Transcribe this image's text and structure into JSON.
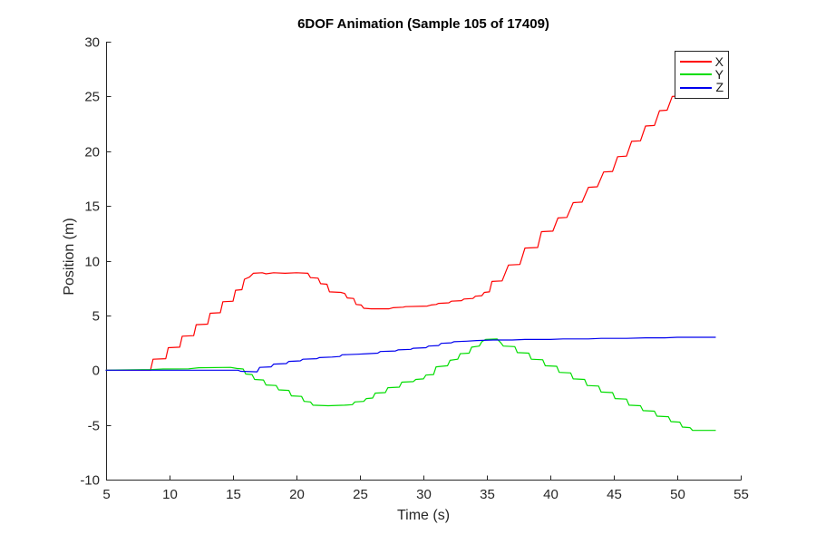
{
  "chart_data": {
    "type": "line",
    "title": "6DOF Animation (Sample 105 of 17409)",
    "xlabel": "Time (s)",
    "ylabel": "Position (m)",
    "xlim": [
      5,
      55
    ],
    "ylim": [
      -10,
      30
    ],
    "xticks": [
      5,
      10,
      15,
      20,
      25,
      30,
      35,
      40,
      45,
      50,
      55
    ],
    "yticks": [
      -10,
      -5,
      0,
      5,
      10,
      15,
      20,
      25,
      30
    ],
    "grid": false,
    "axis_color": "#262626",
    "background": "#ffffff",
    "legend": {
      "position": "top-right",
      "entries": [
        "X",
        "Y",
        "Z"
      ],
      "border_color": "#262626"
    },
    "series": [
      {
        "name": "X",
        "color": "#ff0000",
        "points": [
          [
            5,
            0
          ],
          [
            8.5,
            0
          ],
          [
            8.7,
            1.0
          ],
          [
            9.7,
            1.05
          ],
          [
            9.9,
            2.05
          ],
          [
            10.8,
            2.1
          ],
          [
            11.0,
            3.1
          ],
          [
            11.9,
            3.15
          ],
          [
            12.1,
            4.15
          ],
          [
            13.0,
            4.2
          ],
          [
            13.2,
            5.2
          ],
          [
            14.0,
            5.25
          ],
          [
            14.2,
            6.25
          ],
          [
            15.0,
            6.3
          ],
          [
            15.2,
            7.3
          ],
          [
            15.7,
            7.35
          ],
          [
            15.9,
            8.3
          ],
          [
            16.3,
            8.5
          ],
          [
            16.6,
            8.85
          ],
          [
            17.3,
            8.9
          ],
          [
            17.6,
            8.8
          ],
          [
            18.2,
            8.9
          ],
          [
            19.1,
            8.85
          ],
          [
            20.0,
            8.9
          ],
          [
            20.9,
            8.85
          ],
          [
            21.1,
            8.45
          ],
          [
            21.7,
            8.4
          ],
          [
            21.9,
            7.9
          ],
          [
            22.4,
            7.85
          ],
          [
            22.6,
            7.15
          ],
          [
            23.5,
            7.1
          ],
          [
            23.8,
            7.0
          ],
          [
            24.0,
            6.6
          ],
          [
            24.5,
            6.55
          ],
          [
            24.7,
            6.0
          ],
          [
            25.1,
            5.95
          ],
          [
            25.3,
            5.65
          ],
          [
            25.9,
            5.6
          ],
          [
            27.3,
            5.6
          ],
          [
            27.6,
            5.7
          ],
          [
            28.4,
            5.75
          ],
          [
            28.6,
            5.8
          ],
          [
            30.3,
            5.85
          ],
          [
            30.6,
            5.95
          ],
          [
            31.0,
            6.0
          ],
          [
            31.2,
            6.1
          ],
          [
            32.0,
            6.15
          ],
          [
            32.2,
            6.3
          ],
          [
            33.0,
            6.35
          ],
          [
            33.2,
            6.5
          ],
          [
            33.9,
            6.55
          ],
          [
            34.1,
            6.75
          ],
          [
            34.6,
            6.8
          ],
          [
            34.8,
            7.1
          ],
          [
            35.2,
            7.15
          ],
          [
            35.4,
            8.1
          ],
          [
            36.2,
            8.15
          ],
          [
            36.7,
            9.6
          ],
          [
            37.6,
            9.65
          ],
          [
            38.0,
            11.15
          ],
          [
            39.0,
            11.2
          ],
          [
            39.3,
            12.65
          ],
          [
            40.2,
            12.7
          ],
          [
            40.6,
            13.9
          ],
          [
            41.3,
            13.95
          ],
          [
            41.8,
            15.3
          ],
          [
            42.5,
            15.35
          ],
          [
            43.0,
            16.7
          ],
          [
            43.7,
            16.75
          ],
          [
            44.2,
            18.1
          ],
          [
            44.9,
            18.15
          ],
          [
            45.3,
            19.5
          ],
          [
            46.0,
            19.55
          ],
          [
            46.4,
            20.9
          ],
          [
            47.1,
            20.95
          ],
          [
            47.5,
            22.3
          ],
          [
            48.2,
            22.35
          ],
          [
            48.6,
            23.7
          ],
          [
            49.2,
            23.75
          ],
          [
            49.6,
            25.0
          ],
          [
            50.2,
            25.05
          ],
          [
            50.6,
            25.7
          ],
          [
            51.2,
            25.75
          ],
          [
            51.8,
            26.1
          ],
          [
            53,
            26.1
          ]
        ]
      },
      {
        "name": "Y",
        "color": "#00dd00",
        "points": [
          [
            5,
            0
          ],
          [
            8.6,
            0.05
          ],
          [
            9.5,
            0.1
          ],
          [
            11.5,
            0.12
          ],
          [
            12.3,
            0.22
          ],
          [
            14.8,
            0.25
          ],
          [
            15.3,
            0.15
          ],
          [
            15.8,
            0.1
          ],
          [
            16.0,
            -0.35
          ],
          [
            16.5,
            -0.4
          ],
          [
            16.7,
            -0.85
          ],
          [
            17.4,
            -0.9
          ],
          [
            17.6,
            -1.35
          ],
          [
            18.4,
            -1.4
          ],
          [
            18.6,
            -1.8
          ],
          [
            19.4,
            -1.85
          ],
          [
            19.6,
            -2.35
          ],
          [
            20.4,
            -2.4
          ],
          [
            20.6,
            -2.85
          ],
          [
            21.1,
            -2.9
          ],
          [
            21.3,
            -3.2
          ],
          [
            22.5,
            -3.25
          ],
          [
            23.8,
            -3.2
          ],
          [
            24.4,
            -3.15
          ],
          [
            24.6,
            -2.9
          ],
          [
            25.3,
            -2.85
          ],
          [
            25.5,
            -2.6
          ],
          [
            26.0,
            -2.55
          ],
          [
            26.2,
            -2.1
          ],
          [
            27.0,
            -2.05
          ],
          [
            27.2,
            -1.6
          ],
          [
            28.1,
            -1.55
          ],
          [
            28.3,
            -1.1
          ],
          [
            29.2,
            -1.05
          ],
          [
            29.4,
            -0.85
          ],
          [
            30.0,
            -0.8
          ],
          [
            30.2,
            -0.45
          ],
          [
            30.8,
            -0.4
          ],
          [
            31.0,
            0.3
          ],
          [
            31.9,
            0.4
          ],
          [
            32.1,
            0.9
          ],
          [
            32.7,
            1.0
          ],
          [
            32.9,
            1.5
          ],
          [
            33.6,
            1.55
          ],
          [
            33.8,
            2.1
          ],
          [
            34.4,
            2.2
          ],
          [
            34.6,
            2.6
          ],
          [
            34.9,
            2.8
          ],
          [
            35.8,
            2.85
          ],
          [
            36.1,
            2.5
          ],
          [
            36.3,
            2.2
          ],
          [
            37.2,
            2.15
          ],
          [
            37.4,
            1.6
          ],
          [
            38.3,
            1.55
          ],
          [
            38.5,
            1.0
          ],
          [
            39.4,
            0.95
          ],
          [
            39.6,
            0.4
          ],
          [
            40.5,
            0.35
          ],
          [
            40.7,
            -0.2
          ],
          [
            41.6,
            -0.25
          ],
          [
            41.8,
            -0.8
          ],
          [
            42.7,
            -0.85
          ],
          [
            42.9,
            -1.4
          ],
          [
            43.8,
            -1.45
          ],
          [
            44.0,
            -2.0
          ],
          [
            44.9,
            -2.05
          ],
          [
            45.1,
            -2.6
          ],
          [
            46.0,
            -2.65
          ],
          [
            46.2,
            -3.2
          ],
          [
            47.1,
            -3.25
          ],
          [
            47.3,
            -3.7
          ],
          [
            48.2,
            -3.75
          ],
          [
            48.4,
            -4.2
          ],
          [
            49.3,
            -4.25
          ],
          [
            49.5,
            -4.7
          ],
          [
            50.2,
            -4.75
          ],
          [
            50.4,
            -5.2
          ],
          [
            51.0,
            -5.25
          ],
          [
            51.2,
            -5.5
          ],
          [
            53,
            -5.5
          ]
        ]
      },
      {
        "name": "Z",
        "color": "#0000ee",
        "points": [
          [
            5,
            0
          ],
          [
            15.4,
            0
          ],
          [
            15.6,
            -0.1
          ],
          [
            16.9,
            -0.15
          ],
          [
            17.1,
            0.25
          ],
          [
            18.0,
            0.3
          ],
          [
            18.2,
            0.55
          ],
          [
            19.2,
            0.6
          ],
          [
            19.4,
            0.8
          ],
          [
            20.3,
            0.85
          ],
          [
            20.5,
            1.0
          ],
          [
            21.6,
            1.05
          ],
          [
            21.8,
            1.15
          ],
          [
            22.8,
            1.2
          ],
          [
            23.4,
            1.25
          ],
          [
            23.6,
            1.4
          ],
          [
            24.8,
            1.45
          ],
          [
            25.6,
            1.5
          ],
          [
            26.4,
            1.55
          ],
          [
            26.6,
            1.7
          ],
          [
            27.8,
            1.75
          ],
          [
            28.0,
            1.85
          ],
          [
            29.0,
            1.9
          ],
          [
            29.2,
            2.0
          ],
          [
            30.2,
            2.05
          ],
          [
            30.4,
            2.2
          ],
          [
            31.2,
            2.25
          ],
          [
            31.4,
            2.45
          ],
          [
            32.2,
            2.5
          ],
          [
            32.4,
            2.6
          ],
          [
            33.4,
            2.65
          ],
          [
            34.2,
            2.7
          ],
          [
            35.5,
            2.75
          ],
          [
            37.0,
            2.75
          ],
          [
            38.0,
            2.8
          ],
          [
            40.0,
            2.8
          ],
          [
            41.0,
            2.85
          ],
          [
            43.0,
            2.85
          ],
          [
            44.0,
            2.9
          ],
          [
            46.0,
            2.9
          ],
          [
            47.5,
            2.95
          ],
          [
            49.0,
            2.95
          ],
          [
            50.0,
            3.0
          ],
          [
            53,
            3.0
          ]
        ]
      }
    ]
  }
}
